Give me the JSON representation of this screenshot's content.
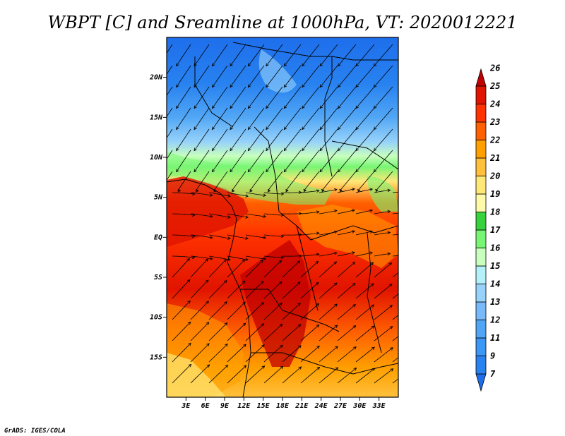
{
  "title": "WBPT [C] and Sreamline at 1000hPa, VT: 2020012221",
  "credit": "GrADS: IGES/COLA",
  "map": {
    "lon_range": [
      0,
      36
    ],
    "lat_range": [
      -20,
      25
    ],
    "lat_ticks": [
      {
        "value": 20,
        "label": "20N"
      },
      {
        "value": 15,
        "label": "15N"
      },
      {
        "value": 10,
        "label": "10N"
      },
      {
        "value": 5,
        "label": "5N"
      },
      {
        "value": 0,
        "label": "EQ"
      },
      {
        "value": -5,
        "label": "5S"
      },
      {
        "value": -10,
        "label": "10S"
      },
      {
        "value": -15,
        "label": "15S"
      }
    ],
    "lon_ticks": [
      {
        "value": 3,
        "label": "3E"
      },
      {
        "value": 6,
        "label": "6E"
      },
      {
        "value": 9,
        "label": "9E"
      },
      {
        "value": 12,
        "label": "12E"
      },
      {
        "value": 15,
        "label": "15E"
      },
      {
        "value": 18,
        "label": "18E"
      },
      {
        "value": 21,
        "label": "21E"
      },
      {
        "value": 24,
        "label": "24E"
      },
      {
        "value": 27,
        "label": "27E"
      },
      {
        "value": 30,
        "label": "30E"
      },
      {
        "value": 33,
        "label": "33E"
      }
    ]
  },
  "colorbar": {
    "labels": [
      "7",
      "9",
      "11",
      "12",
      "13",
      "14",
      "15",
      "16",
      "17",
      "18",
      "19",
      "20",
      "21",
      "22",
      "23",
      "24",
      "25",
      "26"
    ],
    "colors": [
      "#1e6eeb",
      "#2882f0",
      "#3c96f5",
      "#50a5f5",
      "#78b9fa",
      "#96d2fa",
      "#b4f0fa",
      "#c8ffbe",
      "#78f573",
      "#37d23c",
      "#fffaaa",
      "#ffe878",
      "#ffc03c",
      "#ffa000",
      "#ff6000",
      "#ff3200",
      "#e11400",
      "#c00000"
    ]
  }
}
